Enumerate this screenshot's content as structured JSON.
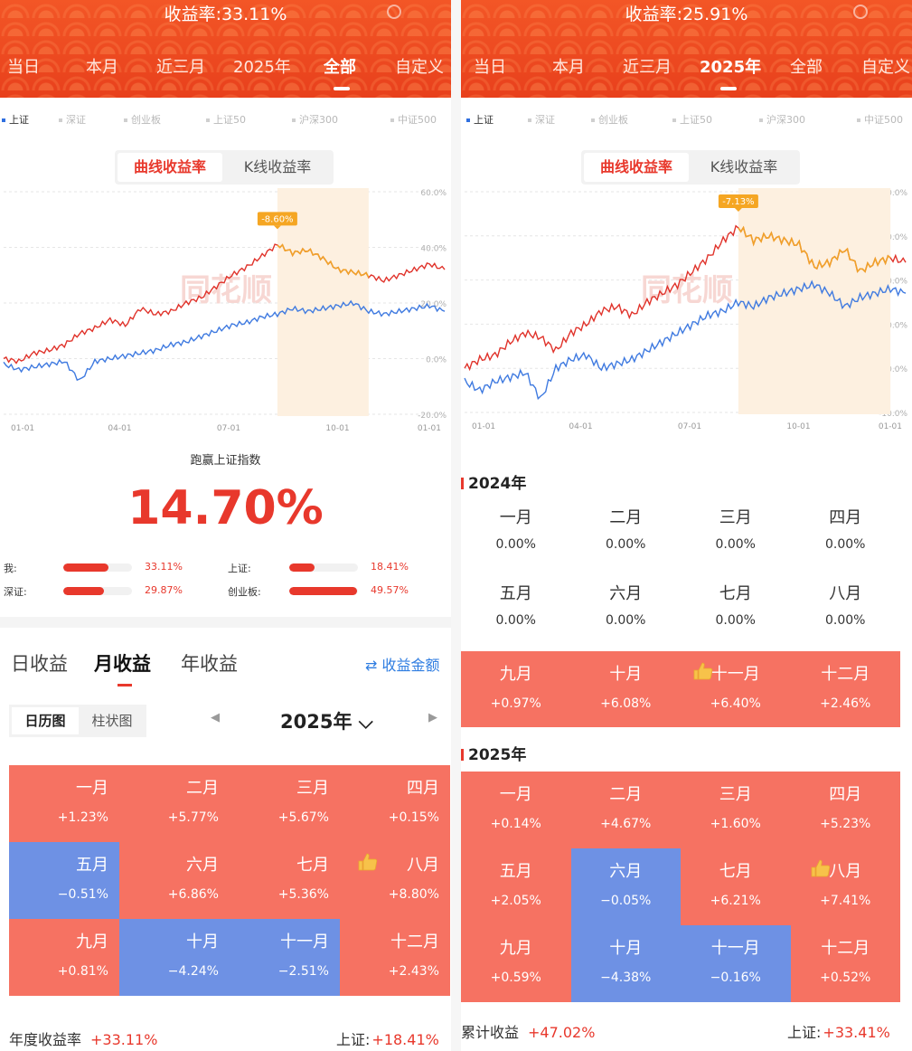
{
  "left": {
    "title": "收益率:33.11%",
    "tabs": [
      "当日",
      "本月",
      "近三月",
      "2025年",
      "全部",
      "自定义"
    ],
    "active_tab": 4,
    "indices": [
      "上证",
      "深证",
      "创业板",
      "上证50",
      "沪深300",
      "中证500"
    ],
    "mode_tabs": [
      "曲线收益率",
      "K线收益率"
    ],
    "chart_data": {
      "type": "line",
      "x_ticks": [
        "01-01",
        "04-01",
        "07-01",
        "10-01",
        "01-01"
      ],
      "y_ticks": [
        "60.0%",
        "40.0%",
        "20.0%",
        "0.0%",
        "-20.0%"
      ],
      "ylim": [
        -20,
        60
      ],
      "drawdown_label": "-8.60%",
      "watermark": "同花顺",
      "series": [
        {
          "values": [
            0,
            -1,
            2,
            3,
            5,
            9,
            11,
            14,
            12,
            18,
            16,
            17,
            20,
            22,
            26,
            30,
            33,
            37,
            41,
            38,
            39,
            36,
            32,
            31,
            30,
            28,
            30,
            32,
            34,
            32
          ],
          "color": "#e0332b",
          "highlight_color": "#f0a22a"
        },
        {
          "values": [
            -2,
            -4,
            -3,
            -2,
            -1,
            -8,
            -1,
            0,
            1,
            2,
            3,
            5,
            6,
            8,
            10,
            12,
            13,
            15,
            16,
            18,
            17,
            18,
            19,
            20,
            17,
            16,
            17,
            18,
            19,
            17
          ],
          "color": "#3f7ae0"
        }
      ],
      "highlight_range": [
        18,
        24
      ]
    },
    "pk": {
      "title": "跑赢上证指数",
      "value": "14.70%",
      "items": [
        {
          "name": "我:",
          "value": "33.11%",
          "ratio": 0.3311
        },
        {
          "name": "上证:",
          "value": "18.41%",
          "ratio": 0.1841
        },
        {
          "name": "深证:",
          "value": "29.87%",
          "ratio": 0.2987
        },
        {
          "name": "创业板:",
          "value": "49.57%",
          "ratio": 0.4957
        }
      ]
    },
    "seg_tabs": [
      "日收益",
      "月收益",
      "年收益"
    ],
    "amount_link": "⇄ 收益金额",
    "view_tabs": [
      "日历图",
      "柱状图"
    ],
    "year": "2025年",
    "months": [
      {
        "name": "一月",
        "value": "+1.23%",
        "color": "red"
      },
      {
        "name": "二月",
        "value": "+5.77%",
        "color": "red"
      },
      {
        "name": "三月",
        "value": "+5.67%",
        "color": "red"
      },
      {
        "name": "四月",
        "value": "+0.15%",
        "color": "red"
      },
      {
        "name": "五月",
        "value": "−0.51%",
        "color": "blue"
      },
      {
        "name": "六月",
        "value": "+6.86%",
        "color": "red"
      },
      {
        "name": "七月",
        "value": "+5.36%",
        "color": "red"
      },
      {
        "name": "八月",
        "value": "+8.80%",
        "color": "red",
        "best": true
      },
      {
        "name": "九月",
        "value": "+0.81%",
        "color": "red"
      },
      {
        "name": "十月",
        "value": "−4.24%",
        "color": "blue"
      },
      {
        "name": "十一月",
        "value": "−2.51%",
        "color": "blue"
      },
      {
        "name": "十二月",
        "value": "+2.43%",
        "color": "red"
      }
    ],
    "footer": {
      "label1": "年度收益率",
      "value1": "+33.11%",
      "label2": "上证:",
      "value2": "+18.41%"
    }
  },
  "right": {
    "title": "收益率:25.91%",
    "tabs": [
      "当日",
      "本月",
      "近三月",
      "2025年",
      "全部",
      "自定义"
    ],
    "active_tab": 3,
    "indices": [
      "上证",
      "深证",
      "创业板",
      "上证50",
      "沪深300",
      "中证500"
    ],
    "mode_tabs": [
      "曲线收益率",
      "K线收益率"
    ],
    "chart_data": {
      "type": "line",
      "x_ticks": [
        "01-01",
        "04-01",
        "07-01",
        "10-01",
        "01-01"
      ],
      "y_ticks": [
        "40.0%",
        "30.0%",
        "20.0%",
        "10.0%",
        "0.0%",
        "-10.0%"
      ],
      "ylim": [
        -10,
        40
      ],
      "drawdown_label": "-7.13%",
      "watermark": "同花顺",
      "series": [
        {
          "values": [
            0,
            2,
            3,
            6,
            8,
            7,
            4,
            8,
            10,
            13,
            14,
            12,
            15,
            17,
            19,
            22,
            25,
            29,
            32,
            29,
            30,
            29,
            28,
            23,
            24,
            27,
            22,
            24,
            25,
            24
          ],
          "color": "#e0332b",
          "highlight_color": "#f0a22a"
        },
        {
          "values": [
            -3,
            -5,
            -3,
            -2,
            -1,
            -7,
            0,
            2,
            3,
            0,
            1,
            2,
            4,
            6,
            8,
            10,
            12,
            13,
            15,
            14,
            16,
            17,
            18,
            19,
            17,
            14,
            16,
            17,
            18,
            17
          ],
          "color": "#3f7ae0"
        }
      ],
      "highlight_range": [
        18,
        28
      ]
    },
    "year_2024": {
      "heading": "2024年",
      "months": [
        {
          "name": "一月",
          "value": "0.00%",
          "color": "white"
        },
        {
          "name": "二月",
          "value": "0.00%",
          "color": "white"
        },
        {
          "name": "三月",
          "value": "0.00%",
          "color": "white"
        },
        {
          "name": "四月",
          "value": "0.00%",
          "color": "white"
        },
        {
          "name": "五月",
          "value": "0.00%",
          "color": "white"
        },
        {
          "name": "六月",
          "value": "0.00%",
          "color": "white"
        },
        {
          "name": "七月",
          "value": "0.00%",
          "color": "white"
        },
        {
          "name": "八月",
          "value": "0.00%",
          "color": "white"
        },
        {
          "name": "九月",
          "value": "+0.97%",
          "color": "red"
        },
        {
          "name": "十月",
          "value": "+6.08%",
          "color": "red"
        },
        {
          "name": "十一月",
          "value": "+6.40%",
          "color": "red",
          "best": true
        },
        {
          "name": "十二月",
          "value": "+2.46%",
          "color": "red"
        }
      ]
    },
    "year_2025": {
      "heading": "2025年",
      "months": [
        {
          "name": "一月",
          "value": "+0.14%",
          "color": "red"
        },
        {
          "name": "二月",
          "value": "+4.67%",
          "color": "red"
        },
        {
          "name": "三月",
          "value": "+1.60%",
          "color": "red"
        },
        {
          "name": "四月",
          "value": "+5.23%",
          "color": "red"
        },
        {
          "name": "五月",
          "value": "+2.05%",
          "color": "red"
        },
        {
          "name": "六月",
          "value": "−0.05%",
          "color": "blue"
        },
        {
          "name": "七月",
          "value": "+6.21%",
          "color": "red"
        },
        {
          "name": "八月",
          "value": "+7.41%",
          "color": "red",
          "best": true
        },
        {
          "name": "九月",
          "value": "+0.59%",
          "color": "red"
        },
        {
          "name": "十月",
          "value": "−4.38%",
          "color": "blue"
        },
        {
          "name": "十一月",
          "value": "−0.16%",
          "color": "blue"
        },
        {
          "name": "十二月",
          "value": "+0.52%",
          "color": "red"
        }
      ]
    },
    "footer": {
      "label1": "累计收益",
      "value1": "+47.02%",
      "label2": "上证:",
      "value2": "+33.41%"
    }
  }
}
